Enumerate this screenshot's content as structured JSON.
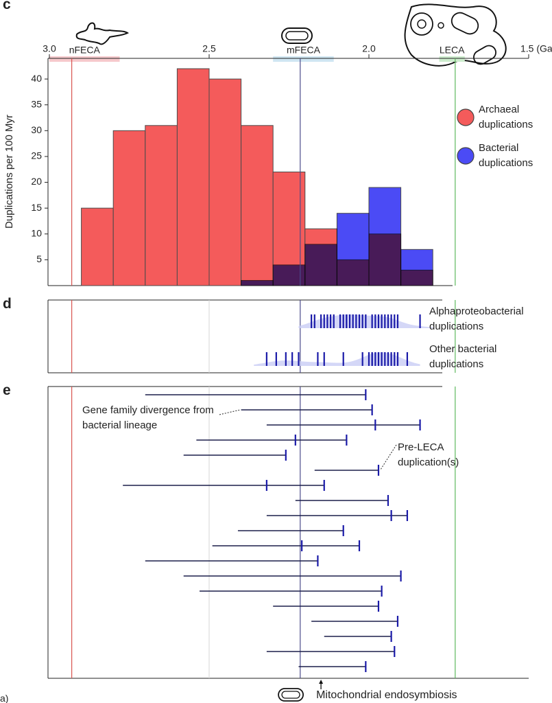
{
  "chart_data": [
    {
      "type": "histogram",
      "panel_label": "c",
      "ylabel": "Duplications per 100 Myr",
      "xlim": [
        3.0,
        1.5
      ],
      "xticks": [
        {
          "value": 3.0,
          "label": "3.0"
        },
        2.5,
        {
          "value": 2.0,
          "label": "2.0"
        },
        {
          "value": 1.5,
          "label": "1.5 (Ga"
        }
      ],
      "ylim": [
        0,
        44
      ],
      "yticks": [
        5,
        10,
        15,
        20,
        25,
        30,
        35,
        40
      ],
      "bins": [
        2.9,
        2.8,
        2.7,
        2.6,
        2.5,
        2.4,
        2.3,
        2.2,
        2.1,
        2.0,
        1.9,
        1.8
      ],
      "series": [
        {
          "name": "Archaeal duplications",
          "color": "#f45b5b",
          "values": [
            15,
            30,
            31,
            42,
            40,
            31,
            22,
            11,
            5,
            10,
            3
          ]
        },
        {
          "name": "Bacterial duplications",
          "color": "#4b4bf5",
          "values": [
            0,
            0,
            0,
            0,
            0,
            1,
            4,
            8,
            14,
            19,
            7
          ]
        }
      ],
      "bands": [
        {
          "label": "nFECA",
          "range": [
            3.0,
            2.78
          ],
          "color": "#f6c9cc"
        },
        {
          "label": "mFECA",
          "range": [
            2.3,
            2.11
          ],
          "color": "#cfe6f2"
        },
        {
          "label": "LECA",
          "range": [
            1.78,
            1.7
          ],
          "color": "#cdeccd"
        }
      ],
      "markers": [
        {
          "value": 2.93,
          "color": "#d9534f"
        },
        {
          "value": 2.215,
          "color": "#4a4a8a"
        },
        {
          "value": 1.73,
          "color": "#5cb85c"
        }
      ]
    },
    {
      "type": "rug",
      "panel_label": "d",
      "xlim": [
        3.0,
        1.5
      ],
      "density_color": "#c9cdf5",
      "grid_line": {
        "value": 2.5,
        "color": "#d4d4d4"
      },
      "series": [
        {
          "name": "Alphaproteobacterial duplications",
          "color": "#1a1aa8",
          "values": [
            2.18,
            2.17,
            2.15,
            2.14,
            2.13,
            2.12,
            2.11,
            2.09,
            2.08,
            2.07,
            2.07,
            2.06,
            2.05,
            2.04,
            2.03,
            2.02,
            2.01,
            1.99,
            1.98,
            1.97,
            1.96,
            1.95,
            1.94,
            1.93,
            1.92,
            1.91,
            1.84
          ]
        },
        {
          "name": "Other bacterial duplications",
          "color": "#1a1aa8",
          "values": [
            2.32,
            2.29,
            2.26,
            2.24,
            2.22,
            2.16,
            2.14,
            2.08,
            2.02,
            2.0,
            1.99,
            1.99,
            1.98,
            1.97,
            1.96,
            1.95,
            1.94,
            1.93,
            1.92,
            1.91,
            1.88
          ]
        }
      ]
    },
    {
      "type": "interval",
      "panel_label": "e",
      "xlim": [
        3.0,
        1.5
      ],
      "line_color": "#1b1f4a",
      "cap_color": "#1a1aa8",
      "grid_line": {
        "value": 2.5,
        "color": "#d4d4d4"
      },
      "rows": [
        {
          "divergence": 2.7,
          "duplications": [
            2.01
          ]
        },
        {
          "divergence": 2.4,
          "duplications": [
            1.99
          ]
        },
        {
          "divergence": 2.32,
          "duplications": [
            1.98,
            1.84
          ]
        },
        {
          "divergence": 2.54,
          "duplications": [
            2.23,
            2.07
          ]
        },
        {
          "divergence": 2.58,
          "duplications": [
            2.26
          ]
        },
        {
          "divergence": 2.17,
          "duplications": [
            1.97
          ]
        },
        {
          "divergence": 2.77,
          "duplications": [
            2.32,
            2.14
          ]
        },
        {
          "divergence": 2.23,
          "duplications": [
            1.94
          ]
        },
        {
          "divergence": 2.32,
          "duplications": [
            1.93,
            1.88
          ]
        },
        {
          "divergence": 2.41,
          "duplications": [
            2.08
          ]
        },
        {
          "divergence": 2.49,
          "duplications": [
            2.21,
            2.03
          ]
        },
        {
          "divergence": 2.7,
          "duplications": [
            2.16
          ]
        },
        {
          "divergence": 2.58,
          "duplications": [
            1.9
          ]
        },
        {
          "divergence": 2.53,
          "duplications": [
            1.96
          ]
        },
        {
          "divergence": 2.3,
          "duplications": [
            1.97
          ]
        },
        {
          "divergence": 2.18,
          "duplications": [
            1.91
          ]
        },
        {
          "divergence": 2.14,
          "duplications": [
            1.93
          ]
        },
        {
          "divergence": 2.32,
          "duplications": [
            1.92
          ]
        },
        {
          "divergence": 2.22,
          "duplications": [
            2.01
          ]
        }
      ],
      "annotations": [
        {
          "text": "Gene family divergence from bacterial lineage"
        },
        {
          "text": "Pre-LECA duplication(s)"
        }
      ],
      "event": {
        "text": "Mitochondrial endosymbiosis",
        "value": 2.15
      }
    },
    {
      "type": "caption",
      "text": "a)"
    }
  ]
}
